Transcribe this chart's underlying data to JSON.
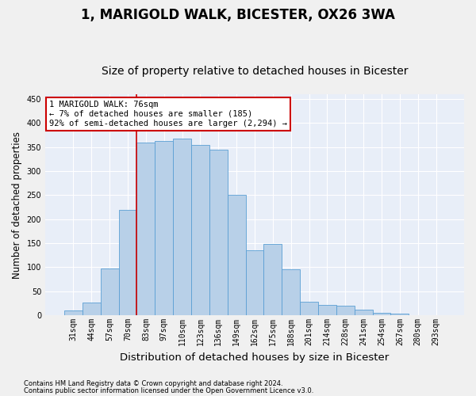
{
  "title1": "1, MARIGOLD WALK, BICESTER, OX26 3WA",
  "title2": "Size of property relative to detached houses in Bicester",
  "xlabel": "Distribution of detached houses by size in Bicester",
  "ylabel": "Number of detached properties",
  "categories": [
    "31sqm",
    "44sqm",
    "57sqm",
    "70sqm",
    "83sqm",
    "97sqm",
    "110sqm",
    "123sqm",
    "136sqm",
    "149sqm",
    "162sqm",
    "175sqm",
    "188sqm",
    "201sqm",
    "214sqm",
    "228sqm",
    "241sqm",
    "254sqm",
    "267sqm",
    "280sqm",
    "293sqm"
  ],
  "values": [
    10,
    26,
    98,
    220,
    360,
    362,
    367,
    355,
    345,
    250,
    135,
    148,
    95,
    28,
    22,
    20,
    11,
    5,
    4,
    1,
    1
  ],
  "bar_color": "#b8d0e8",
  "bar_edge_color": "#5a9fd4",
  "vline_x_index": 3.5,
  "marker_label": "1 MARIGOLD WALK: 76sqm",
  "annotation_line1": "← 7% of detached houses are smaller (185)",
  "annotation_line2": "92% of semi-detached houses are larger (2,294) →",
  "vline_color": "#cc0000",
  "annotation_box_edge_color": "#cc0000",
  "annotation_bg_color": "#ffffff",
  "footnote1": "Contains HM Land Registry data © Crown copyright and database right 2024.",
  "footnote2": "Contains public sector information licensed under the Open Government Licence v3.0.",
  "ylim": [
    0,
    460
  ],
  "bg_color": "#e8eef8",
  "grid_color": "#ffffff",
  "fig_bg_color": "#f0f0f0",
  "title1_fontsize": 12,
  "title2_fontsize": 10,
  "xlabel_fontsize": 9.5,
  "ylabel_fontsize": 8.5,
  "annotation_fontsize": 7.5,
  "tick_fontsize": 7,
  "footnote_fontsize": 6
}
